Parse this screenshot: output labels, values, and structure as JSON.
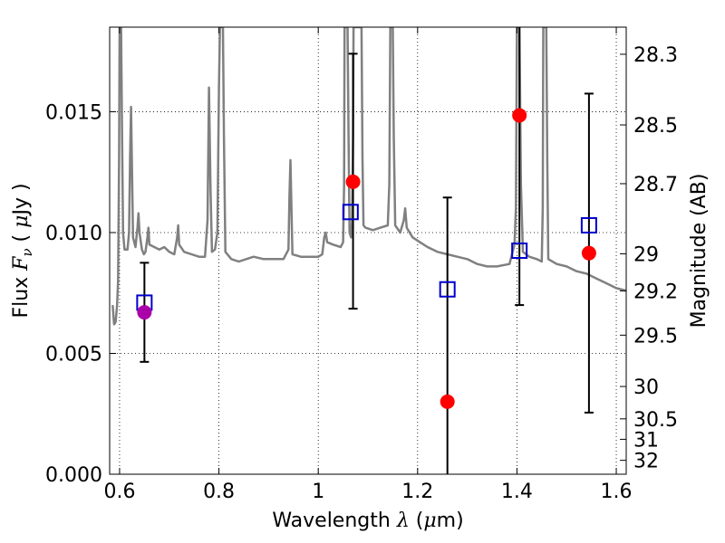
{
  "chart_data": {
    "type": "scatter",
    "xlabel": "Wavelength  λ (μm)",
    "ylabel": "Flux  F_ν  ( μJy )",
    "ylabel_parts": {
      "pre": "Flux  ",
      "sym": "F",
      "sub": "ν",
      "mid": "  ( ",
      "mu": "μ",
      "post": "Jy )"
    },
    "xlabel_parts": {
      "pre": "Wavelength  ",
      "lam": "λ",
      "mid": " (",
      "mu": "μ",
      "post": "m)"
    },
    "y2label": "Magnitude (AB)",
    "xlim": [
      0.58,
      1.62
    ],
    "ylim": [
      0.0,
      0.0185
    ],
    "grid": true,
    "x_ticks": [
      {
        "v": 0.6,
        "label": "0.6"
      },
      {
        "v": 0.8,
        "label": "0.8"
      },
      {
        "v": 1.0,
        "label": "1"
      },
      {
        "v": 1.2,
        "label": "1.2"
      },
      {
        "v": 1.4,
        "label": "1.4"
      },
      {
        "v": 1.6,
        "label": "1.6"
      }
    ],
    "y_ticks": [
      {
        "v": 0.0,
        "label": "0.000"
      },
      {
        "v": 0.005,
        "label": "0.005"
      },
      {
        "v": 0.01,
        "label": "0.010"
      },
      {
        "v": 0.015,
        "label": "0.015"
      }
    ],
    "mag_ticks": [
      {
        "mag": 28.3,
        "label": "28.3"
      },
      {
        "mag": 28.5,
        "label": "28.5"
      },
      {
        "mag": 28.7,
        "label": "28.7"
      },
      {
        "mag": 29.0,
        "label": "29"
      },
      {
        "mag": 29.2,
        "label": "29.2"
      },
      {
        "mag": 29.5,
        "label": "29.5"
      },
      {
        "mag": 30.0,
        "label": "30"
      },
      {
        "mag": 30.5,
        "label": "30.5"
      },
      {
        "mag": 31.0,
        "label": "31"
      },
      {
        "mag": 32.0,
        "label": "32"
      }
    ],
    "colors": {
      "model": "#808080",
      "observed": "#ff0000",
      "observed_first": "#aa00aa",
      "synthetic": "#0000cc",
      "errorbar": "#000000"
    },
    "observed": [
      {
        "x": 0.65,
        "y": 0.0067,
        "yerr_lo": 0.00465,
        "yerr_hi": 0.00875
      },
      {
        "x": 1.07,
        "y": 0.0121,
        "yerr_lo": 0.00685,
        "yerr_hi": 0.0174
      },
      {
        "x": 1.26,
        "y": 0.003,
        "yerr_lo": 0.0,
        "yerr_hi": 0.01145
      },
      {
        "x": 1.405,
        "y": 0.01485,
        "yerr_lo": 0.007,
        "yerr_hi": 0.0185
      },
      {
        "x": 1.545,
        "y": 0.00915,
        "yerr_lo": 0.00255,
        "yerr_hi": 0.01575
      }
    ],
    "synthetic": [
      {
        "x": 0.65,
        "y": 0.0071
      },
      {
        "x": 1.065,
        "y": 0.01085
      },
      {
        "x": 1.26,
        "y": 0.00765
      },
      {
        "x": 1.405,
        "y": 0.00925
      },
      {
        "x": 1.545,
        "y": 0.0103
      }
    ],
    "model_spectrum": [
      [
        0.586,
        0.007
      ],
      [
        0.589,
        0.0062
      ],
      [
        0.592,
        0.0063
      ],
      [
        0.595,
        0.007
      ],
      [
        0.597,
        0.008
      ],
      [
        0.599,
        0.013
      ],
      [
        0.6,
        0.0185
      ],
      [
        0.603,
        0.0185
      ],
      [
        0.605,
        0.014
      ],
      [
        0.607,
        0.01
      ],
      [
        0.61,
        0.0093
      ],
      [
        0.616,
        0.0093
      ],
      [
        0.619,
        0.01
      ],
      [
        0.621,
        0.013
      ],
      [
        0.623,
        0.0152
      ],
      [
        0.625,
        0.0125
      ],
      [
        0.627,
        0.0098
      ],
      [
        0.632,
        0.0094
      ],
      [
        0.636,
        0.0102
      ],
      [
        0.638,
        0.0108
      ],
      [
        0.64,
        0.01
      ],
      [
        0.645,
        0.0093
      ],
      [
        0.649,
        0.0091
      ],
      [
        0.652,
        0.0092
      ],
      [
        0.656,
        0.0098
      ],
      [
        0.658,
        0.0102
      ],
      [
        0.66,
        0.0095
      ],
      [
        0.67,
        0.0094
      ],
      [
        0.68,
        0.0093
      ],
      [
        0.69,
        0.0094
      ],
      [
        0.7,
        0.0092
      ],
      [
        0.71,
        0.0091
      ],
      [
        0.716,
        0.0098
      ],
      [
        0.718,
        0.0103
      ],
      [
        0.72,
        0.0095
      ],
      [
        0.73,
        0.0092
      ],
      [
        0.745,
        0.0091
      ],
      [
        0.76,
        0.009
      ],
      [
        0.772,
        0.009
      ],
      [
        0.777,
        0.0105
      ],
      [
        0.78,
        0.016
      ],
      [
        0.783,
        0.0118
      ],
      [
        0.786,
        0.0092
      ],
      [
        0.792,
        0.0093
      ],
      [
        0.797,
        0.01
      ],
      [
        0.8,
        0.016
      ],
      [
        0.802,
        0.0185
      ],
      [
        0.808,
        0.0185
      ],
      [
        0.81,
        0.014
      ],
      [
        0.813,
        0.0092
      ],
      [
        0.825,
        0.0089
      ],
      [
        0.84,
        0.0088
      ],
      [
        0.855,
        0.0089
      ],
      [
        0.87,
        0.009
      ],
      [
        0.89,
        0.0089
      ],
      [
        0.91,
        0.0089
      ],
      [
        0.93,
        0.0089
      ],
      [
        0.94,
        0.0093
      ],
      [
        0.942,
        0.0115
      ],
      [
        0.944,
        0.013
      ],
      [
        0.946,
        0.011
      ],
      [
        0.948,
        0.0091
      ],
      [
        0.965,
        0.009
      ],
      [
        0.985,
        0.009
      ],
      [
        1.0,
        0.009
      ],
      [
        1.008,
        0.0091
      ],
      [
        1.012,
        0.0098
      ],
      [
        1.015,
        0.01
      ],
      [
        1.018,
        0.0096
      ],
      [
        1.03,
        0.0095
      ],
      [
        1.045,
        0.0094
      ],
      [
        1.05,
        0.0096
      ],
      [
        1.052,
        0.012
      ],
      [
        1.053,
        0.0185
      ],
      [
        1.059,
        0.0185
      ],
      [
        1.061,
        0.014
      ],
      [
        1.063,
        0.01
      ],
      [
        1.066,
        0.0098
      ],
      [
        1.068,
        0.0105
      ],
      [
        1.07,
        0.014
      ],
      [
        1.071,
        0.0185
      ],
      [
        1.087,
        0.0185
      ],
      [
        1.089,
        0.013
      ],
      [
        1.091,
        0.0103
      ],
      [
        1.095,
        0.0102
      ],
      [
        1.11,
        0.0101
      ],
      [
        1.125,
        0.0102
      ],
      [
        1.14,
        0.0103
      ],
      [
        1.143,
        0.012
      ],
      [
        1.145,
        0.0185
      ],
      [
        1.15,
        0.0185
      ],
      [
        1.152,
        0.014
      ],
      [
        1.155,
        0.0103
      ],
      [
        1.165,
        0.01
      ],
      [
        1.172,
        0.0105
      ],
      [
        1.175,
        0.011
      ],
      [
        1.178,
        0.0102
      ],
      [
        1.19,
        0.0098
      ],
      [
        1.205,
        0.0096
      ],
      [
        1.22,
        0.0094
      ],
      [
        1.24,
        0.0092
      ],
      [
        1.26,
        0.0091
      ],
      [
        1.28,
        0.009
      ],
      [
        1.3,
        0.0089
      ],
      [
        1.32,
        0.0087
      ],
      [
        1.34,
        0.0086
      ],
      [
        1.36,
        0.0086
      ],
      [
        1.385,
        0.0087
      ],
      [
        1.395,
        0.0095
      ],
      [
        1.398,
        0.011
      ],
      [
        1.4,
        0.0185
      ],
      [
        1.405,
        0.0185
      ],
      [
        1.408,
        0.012
      ],
      [
        1.412,
        0.0092
      ],
      [
        1.425,
        0.009
      ],
      [
        1.44,
        0.0089
      ],
      [
        1.45,
        0.0088
      ],
      [
        1.452,
        0.011
      ],
      [
        1.453,
        0.0185
      ],
      [
        1.459,
        0.0185
      ],
      [
        1.461,
        0.013
      ],
      [
        1.463,
        0.0089
      ],
      [
        1.48,
        0.0087
      ],
      [
        1.5,
        0.0086
      ],
      [
        1.52,
        0.0084
      ],
      [
        1.54,
        0.0083
      ],
      [
        1.56,
        0.0081
      ],
      [
        1.58,
        0.0079
      ],
      [
        1.6,
        0.0077
      ],
      [
        1.62,
        0.0076
      ]
    ]
  }
}
